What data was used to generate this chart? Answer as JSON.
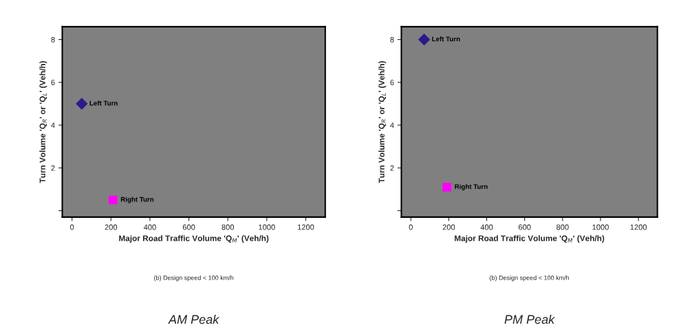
{
  "chart_data": [
    {
      "type": "scatter",
      "title": "AM Peak",
      "xlabel": "Major Road Traffic Volume 'Q$_{M}$' (Veh/h)",
      "ylabel": "Turn Volume 'Q$_{R}$' or 'Q$_{L}$' (Veh/h)",
      "annotations": [
        "(b) Design speed < 100 km/h"
      ],
      "series": [
        {
          "name": "Left Turn",
          "color": "#2b1a8a",
          "marker": "diamond",
          "x": [
            50
          ],
          "values": [
            5
          ]
        },
        {
          "name": "Right Turn",
          "color": "#ff00ff",
          "marker": "square",
          "x": [
            210
          ],
          "values": [
            0.5
          ]
        }
      ],
      "xlim": [
        -50,
        1300
      ],
      "ylim": [
        -0.3,
        8.6
      ],
      "xticks": [
        0,
        200,
        400,
        600,
        800,
        1000,
        1200
      ],
      "yticks": [
        {
          "value": 0,
          "label": null
        },
        2,
        4,
        6,
        8
      ],
      "grid": false,
      "legend": false
    },
    {
      "type": "scatter",
      "title": "PM Peak",
      "xlabel": "Major Road Traffic Volume 'Q$_{M}$' (Veh/h)",
      "ylabel": "Turn Volume 'Q$_{R}$' or 'Q$_{L}$' (Veh/h)",
      "annotations": [
        "(b) Design speed < 100 km/h"
      ],
      "series": [
        {
          "name": "Left Turn",
          "color": "#2b1a8a",
          "marker": "diamond",
          "x": [
            70
          ],
          "values": [
            8
          ]
        },
        {
          "name": "Right Turn",
          "color": "#ff00ff",
          "marker": "square",
          "x": [
            190
          ],
          "values": [
            1.1
          ]
        }
      ],
      "xlim": [
        -50,
        1300
      ],
      "ylim": [
        -0.3,
        8.6
      ],
      "xticks": [
        0,
        200,
        400,
        600,
        800,
        1000,
        1200
      ],
      "yticks": [
        {
          "value": 0,
          "label": null
        },
        2,
        4,
        6,
        8
      ],
      "grid": false,
      "legend": false
    }
  ]
}
